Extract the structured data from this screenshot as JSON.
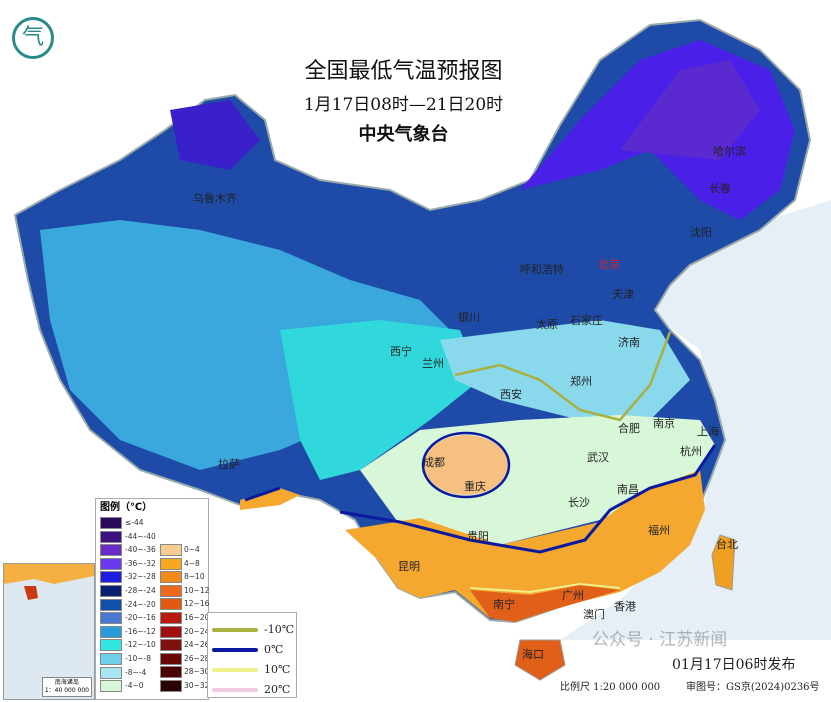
{
  "title": "全国最低气温预报图",
  "period": "1月17日08时—21日20时",
  "issuer": "中央气象台",
  "logo_text": "气",
  "published": "01月17日06时发布",
  "scale": "比例尺 1:20 000 000",
  "review_no": "审图号：GS京(2024)0236号",
  "watermark": "公众号 · 江苏新闻",
  "legend": {
    "title": "图例（℃）",
    "cold": [
      {
        "label": "≤-44",
        "color": "#2a0a5a"
      },
      {
        "label": "-44~-40",
        "color": "#3c1280"
      },
      {
        "label": "-40~-36",
        "color": "#6a2cc8"
      },
      {
        "label": "-36~-32",
        "color": "#6a3af0"
      },
      {
        "label": "-32~-28",
        "color": "#1e1ee0"
      },
      {
        "label": "-28~-24",
        "color": "#0a2070"
      },
      {
        "label": "-24~-20",
        "color": "#1050a8"
      },
      {
        "label": "-20~-16",
        "color": "#4a78d0"
      },
      {
        "label": "-16~-12",
        "color": "#2a9ad8"
      },
      {
        "label": "-12~-10",
        "color": "#30e8e0"
      },
      {
        "label": "-10~-8",
        "color": "#70d0ec"
      },
      {
        "label": "-8~-4",
        "color": "#a8e4f2"
      },
      {
        "label": "-4~0",
        "color": "#d8f6d8"
      }
    ],
    "warm": [
      {
        "label": "0~4",
        "color": "#f6cc90"
      },
      {
        "label": "4~8",
        "color": "#f6a81e"
      },
      {
        "label": "8~10",
        "color": "#f28a1a"
      },
      {
        "label": "10~12",
        "color": "#ec6a1a"
      },
      {
        "label": "12~16",
        "color": "#e05a14"
      },
      {
        "label": "16~20",
        "color": "#b81a10"
      },
      {
        "label": "20~24",
        "color": "#a01010"
      },
      {
        "label": "24~26",
        "color": "#801010"
      },
      {
        "label": "26~28",
        "color": "#6a0808"
      },
      {
        "label": "28~30",
        "color": "#4a0404"
      },
      {
        "label": "30~32",
        "color": "#2a0202"
      }
    ],
    "isolines": [
      {
        "label": "-10℃",
        "color": "#a8b040"
      },
      {
        "label": "0℃",
        "color": "#0a1aa0"
      },
      {
        "label": "10℃",
        "color": "#f0f08a"
      },
      {
        "label": "20℃",
        "color": "#f0c8e0"
      }
    ]
  },
  "cities": [
    "乌鲁木齐",
    "呼和浩特",
    "北京",
    "天津",
    "哈尔滨",
    "长春",
    "沈阳",
    "石家庄",
    "太原",
    "济南",
    "银川",
    "西宁",
    "兰州",
    "郑州",
    "西安",
    "合肥",
    "南京",
    "上海",
    "杭州",
    "武汉",
    "成都",
    "重庆",
    "拉萨",
    "长沙",
    "南昌",
    "福州",
    "台北",
    "贵阳",
    "昆明",
    "南宁",
    "广州",
    "澳门",
    "香港",
    "海口"
  ],
  "inset": {
    "caption": "南海诸岛",
    "scale": "1：40 000 000"
  }
}
